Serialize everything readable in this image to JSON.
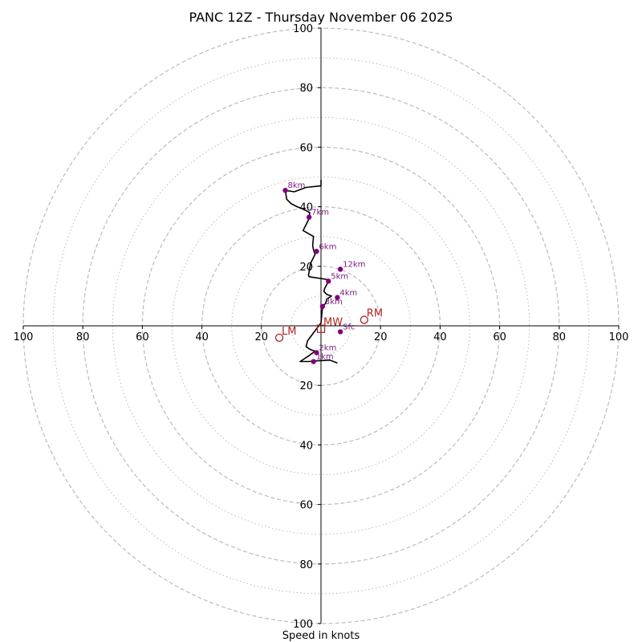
{
  "chart_data": {
    "type": "hodograph",
    "title": "PANC 12Z - Thursday November 06 2025",
    "xlabel": "Speed in knots",
    "range": [
      -100,
      100
    ],
    "ring_major": [
      20,
      40,
      60,
      80,
      100
    ],
    "ring_minor": [
      10,
      30,
      50,
      70,
      90
    ],
    "x_tick_labels": [
      "100",
      "80",
      "60",
      "40",
      "20",
      "20",
      "40",
      "60",
      "80",
      "100"
    ],
    "x_tick_values": [
      -100,
      -80,
      -60,
      -40,
      -20,
      20,
      40,
      60,
      80,
      100
    ],
    "y_tick_labels": [
      "100",
      "80",
      "60",
      "40",
      "20",
      "20",
      "40",
      "60",
      "80",
      "100"
    ],
    "y_tick_values": [
      100,
      80,
      60,
      40,
      20,
      -20,
      -40,
      -60,
      -80,
      -100
    ],
    "trace_units": "knots (u east, v north)",
    "trace": [
      [
        5.5,
        -12.5
      ],
      [
        3,
        -11.5
      ],
      [
        -2,
        -11.8
      ],
      [
        -4,
        -12
      ],
      [
        -7,
        -12
      ],
      [
        -4,
        -10
      ],
      [
        -2,
        -8.5
      ],
      [
        -3.5,
        -8
      ],
      [
        -5,
        -7
      ],
      [
        -4.5,
        -5
      ],
      [
        -3,
        -3
      ],
      [
        -1.5,
        -1
      ],
      [
        0,
        1
      ],
      [
        0.5,
        6.5
      ],
      [
        1.5,
        7.5
      ],
      [
        2,
        9
      ],
      [
        3.5,
        10
      ],
      [
        2,
        10.5
      ],
      [
        1,
        11.5
      ],
      [
        1.2,
        12.5
      ],
      [
        2,
        14
      ],
      [
        2.5,
        15.5
      ],
      [
        -4,
        16.5
      ],
      [
        -4.2,
        17
      ],
      [
        -3.5,
        21
      ],
      [
        -2,
        24
      ],
      [
        -2.5,
        25.5
      ],
      [
        -2.8,
        27
      ],
      [
        -2.5,
        30
      ],
      [
        -6,
        32
      ],
      [
        -5,
        34
      ],
      [
        -4,
        36
      ],
      [
        -3.8,
        38
      ],
      [
        -5.5,
        39
      ],
      [
        -8,
        40
      ],
      [
        -10,
        41
      ],
      [
        -11.5,
        42.5
      ],
      [
        -12,
        45.5
      ],
      [
        -9,
        45
      ],
      [
        -5,
        46.5
      ],
      [
        0,
        47
      ],
      [
        0,
        49
      ]
    ],
    "height_points": [
      {
        "label": "Sfc",
        "u": 6.5,
        "v": -2
      },
      {
        "label": "1km",
        "u": -2.5,
        "v": -12
      },
      {
        "label": "2km",
        "u": -1.5,
        "v": -9
      },
      {
        "label": "3km",
        "u": 0.5,
        "v": 6.5
      },
      {
        "label": "4km",
        "u": 5.5,
        "v": 9.5
      },
      {
        "label": "5km",
        "u": 2.5,
        "v": 15
      },
      {
        "label": "6km",
        "u": -1.5,
        "v": 25
      },
      {
        "label": "7km",
        "u": -4,
        "v": 36.5
      },
      {
        "label": "8km",
        "u": -12,
        "v": 45.5
      },
      {
        "label": "12km",
        "u": 6.5,
        "v": 19
      }
    ],
    "storm_motion": [
      {
        "label": "RM",
        "u": 14.5,
        "v": 2,
        "marker": "circle"
      },
      {
        "label": "LM",
        "u": -14,
        "v": -4,
        "marker": "circle"
      },
      {
        "label": "MW",
        "u": 0,
        "v": -1,
        "marker": "square"
      }
    ],
    "colors": {
      "ring": "#bbbbbb",
      "axis": "#000000",
      "trace": "#000000",
      "height_point": "#800080",
      "storm_marker": "#b22222"
    }
  }
}
